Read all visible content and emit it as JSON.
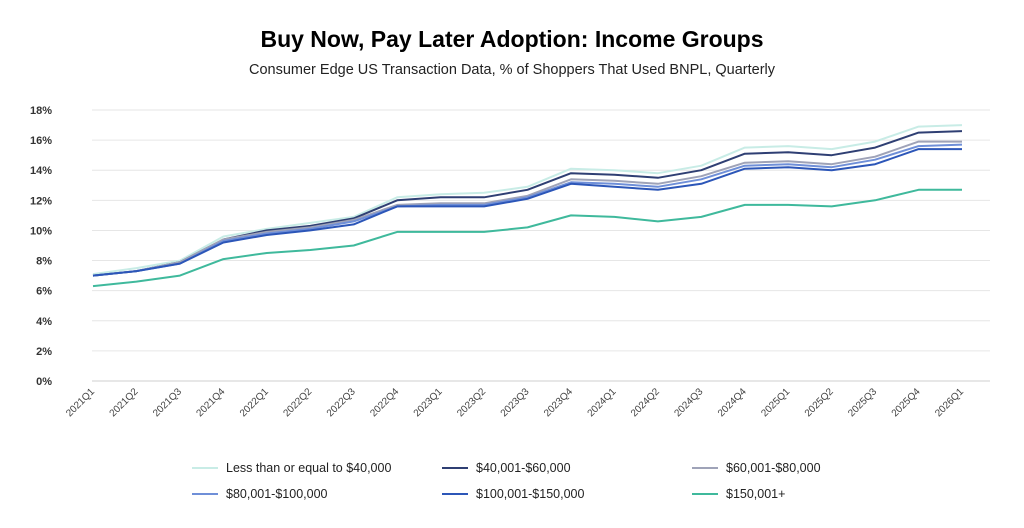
{
  "chart_data": {
    "type": "line",
    "title": "Buy Now, Pay Later Adoption: Income Groups",
    "subtitle": "Consumer Edge US Transaction Data, % of Shoppers That Used BNPL, Quarterly",
    "ylim": [
      0,
      18
    ],
    "yticks": [
      "0%",
      "2%",
      "4%",
      "6%",
      "8%",
      "10%",
      "12%",
      "14%",
      "16%",
      "18%"
    ],
    "grid": true,
    "legend_position": "bottom",
    "categories": [
      "2021Q1",
      "2021Q2",
      "2021Q3",
      "2021Q4",
      "2022Q1",
      "2022Q2",
      "2022Q3",
      "2022Q4",
      "2023Q1",
      "2023Q2",
      "2023Q3",
      "2023Q4",
      "2024Q1",
      "2024Q2",
      "2024Q3",
      "2024Q4",
      "2025Q1",
      "2025Q2",
      "2025Q3",
      "2025Q4",
      "2026Q1"
    ],
    "series": [
      {
        "name": "Less than or equal to $40,000",
        "color": "#c8ece6",
        "values": [
          7.1,
          7.5,
          8.0,
          9.6,
          10.1,
          10.5,
          10.9,
          12.2,
          12.4,
          12.5,
          12.9,
          14.1,
          14.0,
          13.8,
          14.3,
          15.5,
          15.6,
          15.4,
          15.9,
          16.9,
          17.0
        ]
      },
      {
        "name": "$40,001-$60,000",
        "color": "#2f3f73",
        "values": [
          7.0,
          7.3,
          7.9,
          9.4,
          10.0,
          10.3,
          10.8,
          12.0,
          12.2,
          12.2,
          12.7,
          13.8,
          13.7,
          13.5,
          14.0,
          15.1,
          15.2,
          15.0,
          15.5,
          16.5,
          16.6
        ]
      },
      {
        "name": "$60,001-$80,000",
        "color": "#9fa3b8",
        "values": [
          7.0,
          7.3,
          7.9,
          9.4,
          9.9,
          10.2,
          10.7,
          11.7,
          11.8,
          11.8,
          12.3,
          13.4,
          13.3,
          13.1,
          13.6,
          14.5,
          14.6,
          14.4,
          14.9,
          15.9,
          15.9
        ]
      },
      {
        "name": "$80,001-$100,000",
        "color": "#6f8fd8",
        "values": [
          7.0,
          7.3,
          7.8,
          9.3,
          9.8,
          10.1,
          10.6,
          11.6,
          11.7,
          11.7,
          12.2,
          13.2,
          13.1,
          12.9,
          13.4,
          14.3,
          14.4,
          14.2,
          14.7,
          15.6,
          15.7
        ]
      },
      {
        "name": "$100,001-$150,000",
        "color": "#2c56b8",
        "values": [
          7.0,
          7.3,
          7.8,
          9.2,
          9.7,
          10.0,
          10.4,
          11.6,
          11.6,
          11.6,
          12.1,
          13.1,
          12.9,
          12.7,
          13.1,
          14.1,
          14.2,
          14.0,
          14.4,
          15.4,
          15.4
        ]
      },
      {
        "name": "$150,001+",
        "color": "#3fb99c",
        "values": [
          6.3,
          6.6,
          7.0,
          8.1,
          8.5,
          8.7,
          9.0,
          9.9,
          9.9,
          9.9,
          10.2,
          11.0,
          10.9,
          10.6,
          10.9,
          11.7,
          11.7,
          11.6,
          12.0,
          12.7,
          12.7
        ]
      }
    ]
  }
}
